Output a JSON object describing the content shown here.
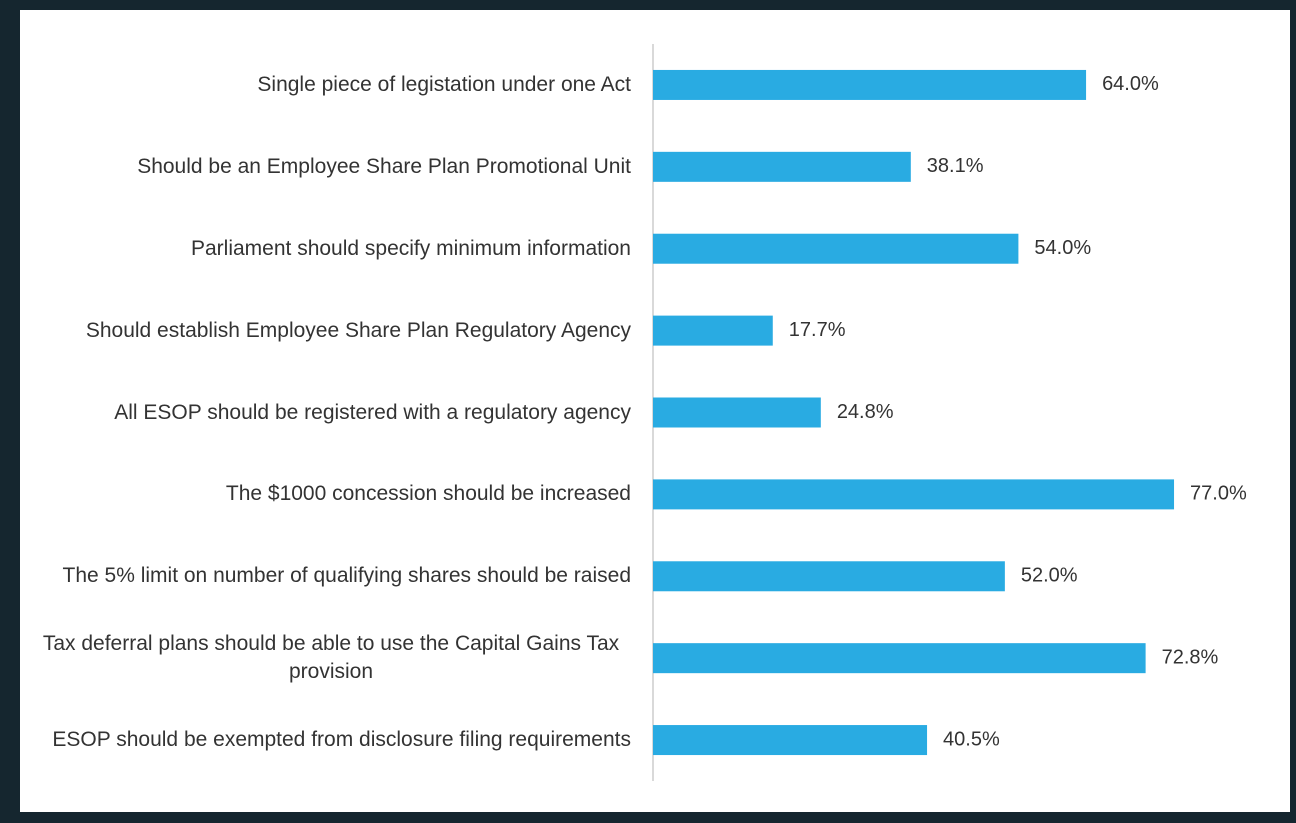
{
  "chart_data": {
    "type": "hbar",
    "categories": [
      "Single piece of legistation under one Act",
      "Should be an Employee Share Plan Promotional Unit",
      "Parliament should specify minimum information",
      "Should establish Employee Share Plan Regulatory Agency",
      "All ESOP should be registered with a regulatory agency",
      "The $1000 concession should be increased",
      "The 5% limit on number of qualifying shares should be raised",
      "Tax deferral plans should be able to use the Capital Gains Tax provision",
      "ESOP should be exempted from disclosure filing requirements"
    ],
    "values": [
      64.0,
      38.1,
      54.0,
      17.7,
      24.8,
      77.0,
      52.0,
      72.8,
      40.5
    ],
    "value_labels": [
      "64.0%",
      "38.1%",
      "54.0%",
      "17.7%",
      "24.8%",
      "77.0%",
      "52.0%",
      "72.8%",
      "40.5%"
    ],
    "color": "#29abe2",
    "xlim": [
      0,
      90
    ]
  }
}
